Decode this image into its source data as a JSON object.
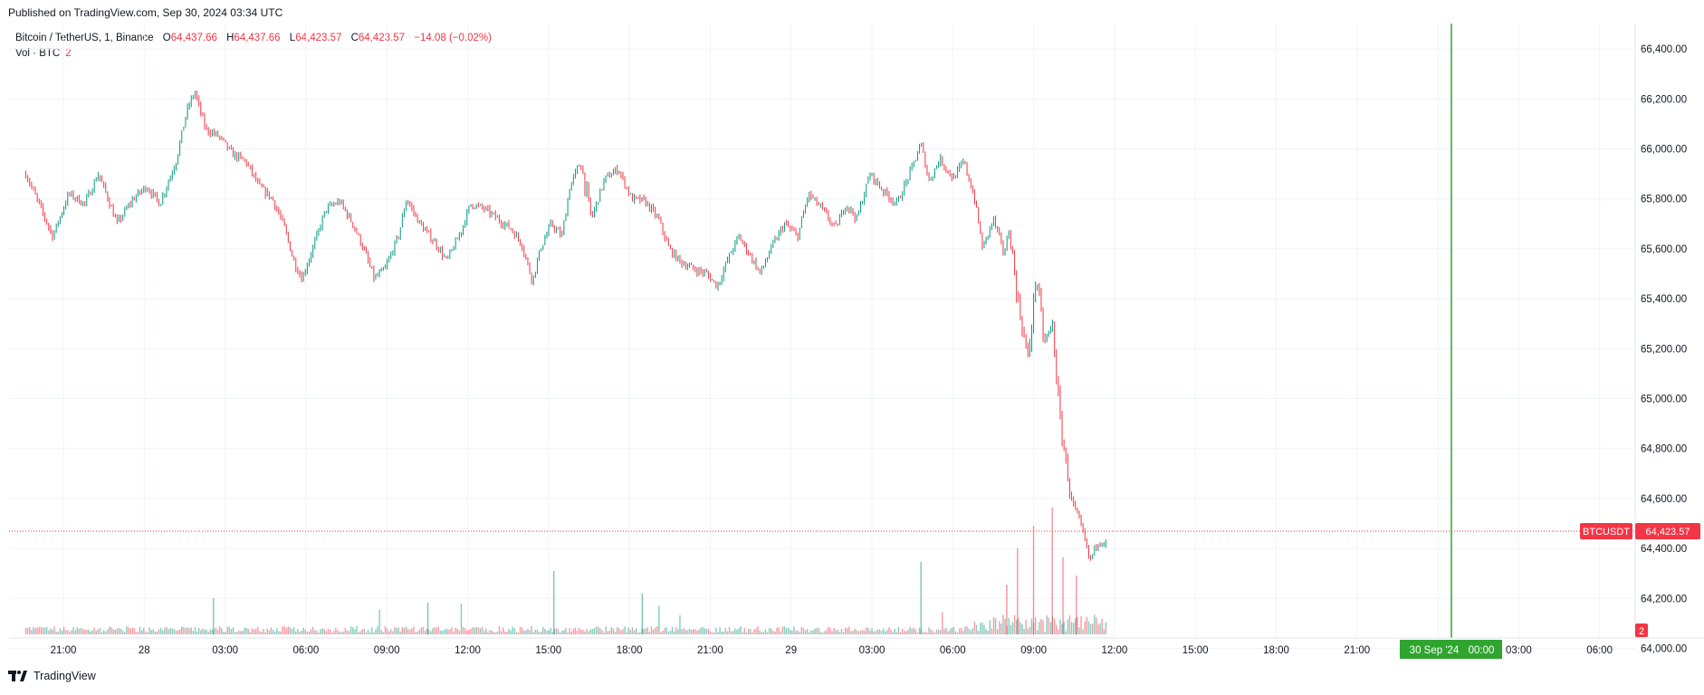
{
  "published": "Published on TradingView.com, Sep 30, 2024 03:34 UTC",
  "legend": {
    "symbol": "Bitcoin / TetherUS, 1, Binance",
    "o_label": "O",
    "o_value": "64,437.66",
    "h_label": "H",
    "h_value": "64,437.66",
    "l_label": "L",
    "l_value": "64,423.57",
    "c_label": "C",
    "c_value": "64,423.57",
    "change": "−14.08 (−0.02%)",
    "volume_label": "Vol · BTC",
    "volume_value": "2"
  },
  "footer": {
    "brand": "TradingView"
  },
  "price_tag": {
    "symbol": "BTCUSDT",
    "price": "64,423.57"
  },
  "volume_tag": "2",
  "crosshair_label": {
    "date": "30 Sep '24",
    "time": "00:00"
  },
  "colors": {
    "up": "#089981",
    "down": "#f23645",
    "crosshair": "#2fa52f",
    "grid": "#f0f3fa"
  },
  "chart_data": {
    "type": "candlestick",
    "interval": "1 minute",
    "y_ticks": [
      "66,400.00",
      "66,200.00",
      "66,000.00",
      "65,800.00",
      "65,600.00",
      "65,400.00",
      "65,200.00",
      "65,000.00",
      "64,800.00",
      "64,600.00",
      "64,400.00",
      "64,200.00",
      "64,000.00"
    ],
    "x_ticks": [
      "21:00",
      "28",
      "03:00",
      "06:00",
      "09:00",
      "12:00",
      "15:00",
      "18:00",
      "21:00",
      "29",
      "03:00",
      "06:00",
      "09:00",
      "12:00",
      "15:00",
      "18:00",
      "21:00",
      "00:00",
      "03:00",
      "06:00"
    ],
    "ylim": [
      64000,
      66420
    ],
    "x_hours_range": [
      -1.5,
      33.1
    ],
    "last_price": 64423.57,
    "close_path": [
      {
        "t": -1.4,
        "p": 65900
      },
      {
        "t": -0.8,
        "p": 65750
      },
      {
        "t": -0.4,
        "p": 65650
      },
      {
        "t": 0.2,
        "p": 65820
      },
      {
        "t": 0.8,
        "p": 65780
      },
      {
        "t": 1.3,
        "p": 65900
      },
      {
        "t": 1.6,
        "p": 65820
      },
      {
        "t": 2.0,
        "p": 65700
      },
      {
        "t": 2.6,
        "p": 65800
      },
      {
        "t": 3.1,
        "p": 65850
      },
      {
        "t": 3.6,
        "p": 65780
      },
      {
        "t": 4.2,
        "p": 65950
      },
      {
        "t": 4.6,
        "p": 66150
      },
      {
        "t": 4.9,
        "p": 66230
      },
      {
        "t": 5.3,
        "p": 66080
      },
      {
        "t": 5.8,
        "p": 66050
      },
      {
        "t": 6.3,
        "p": 65980
      },
      {
        "t": 6.8,
        "p": 65950
      },
      {
        "t": 7.3,
        "p": 65850
      },
      {
        "t": 7.8,
        "p": 65800
      },
      {
        "t": 8.2,
        "p": 65700
      },
      {
        "t": 8.6,
        "p": 65550
      },
      {
        "t": 8.9,
        "p": 65480
      },
      {
        "t": 9.3,
        "p": 65600
      },
      {
        "t": 9.8,
        "p": 65760
      },
      {
        "t": 10.3,
        "p": 65790
      },
      {
        "t": 10.8,
        "p": 65700
      },
      {
        "t": 11.2,
        "p": 65600
      },
      {
        "t": 11.6,
        "p": 65480
      },
      {
        "t": 12.0,
        "p": 65520
      },
      {
        "t": 12.5,
        "p": 65650
      },
      {
        "t": 12.8,
        "p": 65800
      },
      {
        "t": 13.3,
        "p": 65700
      },
      {
        "t": 13.9,
        "p": 65620
      },
      {
        "t": 14.3,
        "p": 65550
      },
      {
        "t": 14.8,
        "p": 65660
      },
      {
        "t": 15.2,
        "p": 65780
      },
      {
        "t": 15.7,
        "p": 65760
      },
      {
        "t": 16.2,
        "p": 65720
      },
      {
        "t": 16.7,
        "p": 65680
      },
      {
        "t": 17.1,
        "p": 65620
      },
      {
        "t": 17.5,
        "p": 65470
      },
      {
        "t": 17.8,
        "p": 65600
      },
      {
        "t": 18.2,
        "p": 65700
      },
      {
        "t": 18.6,
        "p": 65650
      },
      {
        "t": 18.9,
        "p": 65850
      },
      {
        "t": 19.3,
        "p": 65950
      },
      {
        "t": 19.7,
        "p": 65720
      },
      {
        "t": 20.2,
        "p": 65880
      },
      {
        "t": 20.7,
        "p": 65920
      },
      {
        "t": 21.2,
        "p": 65800
      },
      {
        "t": 21.7,
        "p": 65790
      },
      {
        "t": 22.2,
        "p": 65720
      },
      {
        "t": 22.6,
        "p": 65600
      },
      {
        "t": 23.0,
        "p": 65550
      },
      {
        "t": 23.5,
        "p": 65520
      },
      {
        "t": 24.0,
        "p": 65500
      },
      {
        "t": 24.4,
        "p": 65450
      },
      {
        "t": 24.8,
        "p": 65560
      },
      {
        "t": 25.2,
        "p": 65650
      },
      {
        "t": 25.7,
        "p": 65560
      },
      {
        "t": 26.0,
        "p": 65500
      },
      {
        "t": 26.4,
        "p": 65600
      },
      {
        "t": 26.9,
        "p": 65700
      },
      {
        "t": 27.4,
        "p": 65650
      },
      {
        "t": 27.8,
        "p": 65820
      },
      {
        "t": 28.3,
        "p": 65760
      },
      {
        "t": 28.8,
        "p": 65680
      },
      {
        "t": 29.2,
        "p": 65780
      },
      {
        "t": 29.6,
        "p": 65720
      },
      {
        "t": 30.1,
        "p": 65900
      },
      {
        "t": 30.6,
        "p": 65830
      },
      {
        "t": 31.1,
        "p": 65780
      },
      {
        "t": 31.5,
        "p": 65880
      },
      {
        "t": 32.0,
        "p": 66020
      },
      {
        "t": 32.3,
        "p": 65870
      },
      {
        "t": 32.7,
        "p": 65960
      },
      {
        "t": 33.2,
        "p": 65880
      },
      {
        "t": 33.6,
        "p": 65950
      },
      {
        "t": 34.0,
        "p": 65800
      },
      {
        "t": 34.3,
        "p": 65600
      },
      {
        "t": 34.7,
        "p": 65720
      },
      {
        "t": 35.1,
        "p": 65580
      },
      {
        "t": 35.3,
        "p": 65680
      },
      {
        "t": 35.6,
        "p": 65400
      },
      {
        "t": 36.0,
        "p": 65150
      },
      {
        "t": 36.3,
        "p": 65500
      },
      {
        "t": 36.6,
        "p": 65220
      },
      {
        "t": 36.9,
        "p": 65300
      },
      {
        "t": 37.2,
        "p": 64900
      },
      {
        "t": 37.6,
        "p": 64600
      },
      {
        "t": 38.0,
        "p": 64480
      },
      {
        "t": 38.3,
        "p": 64350
      },
      {
        "t": 38.6,
        "p": 64430
      },
      {
        "t": 38.9,
        "p": 64423.57
      }
    ],
    "volume_spikes": [
      {
        "t": 5.6,
        "v": 40
      },
      {
        "t": 13.6,
        "v": 35
      },
      {
        "t": 18.3,
        "v": 70
      },
      {
        "t": 21.6,
        "v": 45
      },
      {
        "t": 32.0,
        "v": 80
      },
      {
        "t": 35.2,
        "v": 55
      },
      {
        "t": 35.6,
        "v": 95
      },
      {
        "t": 36.2,
        "v": 120
      },
      {
        "t": 36.9,
        "v": 140
      },
      {
        "t": 37.3,
        "v": 85
      },
      {
        "t": 37.8,
        "v": 65
      }
    ]
  }
}
